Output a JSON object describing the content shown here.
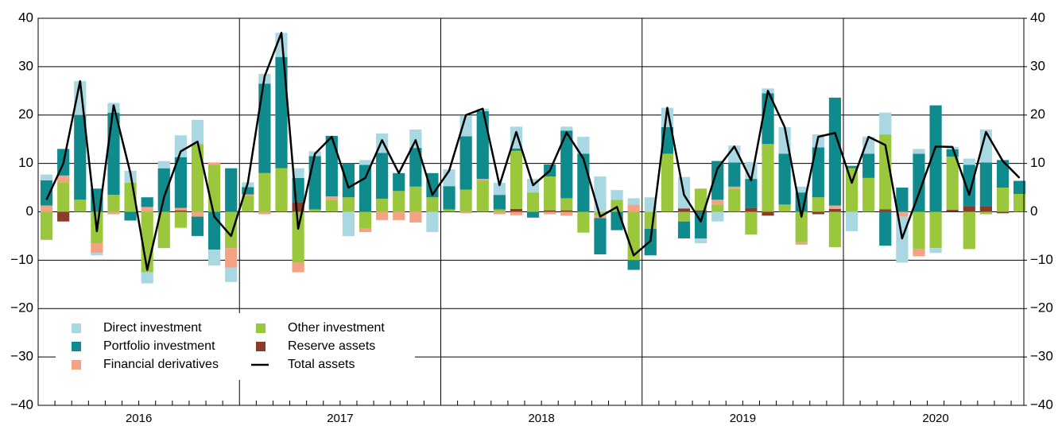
{
  "chart_data": {
    "type": "bar",
    "categories": [
      null,
      null,
      null,
      null,
      null,
      null,
      null,
      null,
      null,
      null,
      null,
      null,
      null,
      null,
      null,
      null,
      null,
      null,
      null,
      null,
      null,
      null,
      null,
      null,
      null,
      null,
      null,
      null,
      null,
      null,
      null,
      null,
      null,
      null,
      null,
      null,
      null,
      null,
      null,
      null,
      null,
      null,
      null,
      null,
      null,
      null,
      null,
      null,
      null,
      null,
      null,
      null,
      null,
      null,
      null,
      null,
      null,
      null,
      null
    ],
    "x_groups": [
      "2016",
      "2017",
      "2018",
      "2019",
      "2020"
    ],
    "series": [
      {
        "name": "Direct investment",
        "color": "#a9d8e3",
        "values": [
          1.2,
          0,
          7,
          -0.5,
          2,
          2.5,
          -2.3,
          1.5,
          4.5,
          5,
          -3.3,
          -3,
          1,
          2,
          5,
          2,
          1,
          0,
          -5,
          1,
          4,
          0,
          3.8,
          -4.2,
          3.5,
          4.3,
          0.5,
          2.5,
          4.5,
          2.8,
          0,
          0.8,
          3.5,
          7.3,
          2,
          1.3,
          3,
          4,
          6.5,
          -1,
          -2,
          3.5,
          3.5,
          1,
          5.5,
          1.2,
          2.7,
          0,
          -4,
          3.5,
          4.5,
          -9.5,
          1,
          -1,
          0.5,
          1.3,
          6.8,
          0,
          0
        ]
      },
      {
        "name": "Portfolio investment",
        "color": "#0f8b8d",
        "values": [
          5.2,
          5.5,
          17.5,
          4.8,
          17,
          -1.8,
          2,
          9,
          10.5,
          -4,
          -7.8,
          9,
          1.5,
          18.5,
          23,
          5,
          11,
          12.5,
          7,
          9.7,
          9.5,
          3.7,
          8,
          5,
          4.8,
          11,
          14,
          3,
          0.5,
          -1.2,
          2.5,
          14,
          12,
          -7.5,
          -3.8,
          -2,
          -5.5,
          5.5,
          -3.5,
          -5.5,
          8,
          5,
          6,
          10.5,
          10.5,
          4,
          10.3,
          22.3,
          0.5,
          5,
          -7,
          5,
          12,
          22,
          1.5,
          8.5,
          9,
          5.7,
          2.7
        ]
      },
      {
        "name": "Financial derivatives",
        "color": "#f4a184",
        "values": [
          1.3,
          1.5,
          0,
          -2,
          -0.5,
          0,
          1,
          0,
          0.5,
          -1,
          0.5,
          -4,
          0.3,
          -0.5,
          0,
          -2,
          0,
          0.7,
          0,
          -0.7,
          -1.7,
          -1.7,
          -2.2,
          0,
          0,
          -0.3,
          0.3,
          -0.5,
          -0.7,
          0,
          -0.5,
          -0.8,
          0,
          -0.5,
          0,
          1.5,
          0,
          0,
          0,
          0,
          1,
          0.5,
          0,
          0,
          0,
          -0.5,
          0,
          0.7,
          0,
          0,
          0,
          -1,
          -1.5,
          0,
          0,
          0,
          0,
          0,
          0
        ]
      },
      {
        "name": "Other investment",
        "color": "#9bc73d",
        "values": [
          -5.8,
          6,
          2.5,
          -6.5,
          3.5,
          6,
          -12.5,
          -7.5,
          -3.3,
          14,
          9.7,
          -7.5,
          3.3,
          8,
          9,
          -10.5,
          0.5,
          2.5,
          3,
          -3.5,
          2.7,
          4.3,
          5.2,
          3,
          0.5,
          4.6,
          6.5,
          0.5,
          12,
          4,
          7,
          2.5,
          -4.3,
          -0.8,
          2.5,
          -10,
          -3.5,
          12,
          -2,
          4.5,
          1.5,
          4.7,
          -4.7,
          14,
          1.5,
          -6.3,
          3,
          -7.3,
          9,
          7,
          15.5,
          0,
          -7.7,
          -7.5,
          11,
          -7.7,
          -0.5,
          5,
          3.7
        ]
      },
      {
        "name": "Reserve assets",
        "color": "#8b3a2b",
        "values": [
          0,
          -2,
          0,
          0,
          0,
          0,
          0,
          0,
          0.3,
          0,
          0,
          0,
          0,
          0,
          0,
          2,
          0,
          0,
          0,
          0,
          0,
          0,
          0,
          0,
          0,
          0,
          0,
          0,
          0.6,
          0,
          0.3,
          0.3,
          0,
          0,
          0,
          0,
          0,
          0,
          0.7,
          0.3,
          0,
          0,
          0.8,
          -0.8,
          0,
          0,
          -0.5,
          0.6,
          0,
          0,
          0.5,
          0,
          0,
          0,
          0.4,
          1.2,
          1.2,
          -0.3,
          0
        ]
      },
      {
        "name": "Total assets",
        "color": "#000000",
        "type": "line",
        "values": [
          2.5,
          10,
          27,
          -4,
          22,
          8,
          -12,
          3,
          12.5,
          14.5,
          -1,
          -5,
          6,
          28,
          37,
          -3.5,
          12,
          15.5,
          5,
          7,
          14.8,
          8,
          14.8,
          3.5,
          8.5,
          20,
          21.3,
          5.5,
          16.5,
          5.5,
          8.5,
          16.4,
          11,
          -1,
          1,
          -9,
          -6,
          21.5,
          3.5,
          -2,
          9,
          13.5,
          6.5,
          25,
          17.5,
          -1,
          15.5,
          16.3,
          6,
          15.5,
          13.8,
          -5.5,
          3.8,
          13.5,
          13.4,
          3.5,
          16.5,
          10.5,
          7
        ]
      }
    ],
    "ylim": [
      -40,
      40
    ],
    "yticks": [
      {
        "value": -40,
        "label": "−40"
      },
      {
        "value": -30,
        "label": "−30"
      },
      {
        "value": -20,
        "label": "−20"
      },
      {
        "value": -10,
        "label": "−10"
      },
      0,
      10,
      20,
      30,
      40
    ],
    "y2lim": [
      -40,
      40
    ],
    "y2ticks": [
      {
        "value": -40,
        "label": "−40"
      },
      {
        "value": -30,
        "label": "−30"
      },
      {
        "value": -20,
        "label": "−20"
      },
      {
        "value": -10,
        "label": "−10"
      },
      0,
      10,
      20,
      30,
      40
    ],
    "grid": true
  }
}
